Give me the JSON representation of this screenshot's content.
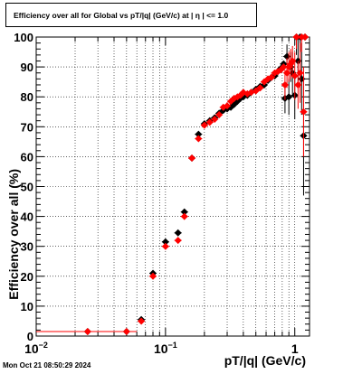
{
  "footer": {
    "timestamp": "Mon Oct 21 08:50:29 2024"
  },
  "chart_data": {
    "type": "scatter",
    "title": "Efficiency over all for Global vs pT/|q| (GeV/c) at |  η  | <= 1.0",
    "xlabel": "pT/|q| (GeV/c)",
    "ylabel": "Efficiency over all (%)",
    "x_scale": "log",
    "xlim": [
      0.01,
      1.3
    ],
    "ylim": [
      0,
      100
    ],
    "grid": true,
    "x_tick_labels": [
      {
        "value": 0.01,
        "label": "10",
        "sup": "−2"
      },
      {
        "value": 0.1,
        "label": "10",
        "sup": "−1"
      },
      {
        "value": 1,
        "label": "1",
        "sup": ""
      }
    ],
    "y_ticks": [
      0,
      10,
      20,
      30,
      40,
      50,
      60,
      70,
      80,
      90,
      100
    ],
    "series": [
      {
        "color": "#000000",
        "points": [
          {
            "x": 0.025,
            "y": 1.5,
            "xerr": [
              0.01,
              0.04
            ]
          },
          {
            "x": 0.05,
            "y": 1.5,
            "xerr": [
              0.04,
              0.06
            ]
          },
          {
            "x": 0.065,
            "y": 5.5
          },
          {
            "x": 0.08,
            "y": 21
          },
          {
            "x": 0.1,
            "y": 31.5
          },
          {
            "x": 0.125,
            "y": 34.5
          },
          {
            "x": 0.14,
            "y": 41.5
          },
          {
            "x": 0.16,
            "y": 59.5
          },
          {
            "x": 0.18,
            "y": 67.5
          },
          {
            "x": 0.2,
            "y": 71
          },
          {
            "x": 0.22,
            "y": 72
          },
          {
            "x": 0.24,
            "y": 73
          },
          {
            "x": 0.26,
            "y": 74.5
          },
          {
            "x": 0.28,
            "y": 75.5
          },
          {
            "x": 0.3,
            "y": 76
          },
          {
            "x": 0.32,
            "y": 76.5
          },
          {
            "x": 0.34,
            "y": 77.5
          },
          {
            "x": 0.36,
            "y": 78.5
          },
          {
            "x": 0.38,
            "y": 79.5
          },
          {
            "x": 0.4,
            "y": 80
          },
          {
            "x": 0.43,
            "y": 80.5
          },
          {
            "x": 0.46,
            "y": 81.5
          },
          {
            "x": 0.5,
            "y": 82.5
          },
          {
            "x": 0.54,
            "y": 83.5
          },
          {
            "x": 0.58,
            "y": 84
          },
          {
            "x": 0.62,
            "y": 85.5
          },
          {
            "x": 0.66,
            "y": 86.5
          },
          {
            "x": 0.7,
            "y": 87
          },
          {
            "x": 0.74,
            "y": 88.5
          },
          {
            "x": 0.78,
            "y": 89.5
          },
          {
            "x": 0.82,
            "y": 91
          },
          {
            "x": 0.84,
            "y": 79.5,
            "yerr": 5
          },
          {
            "x": 0.87,
            "y": 93.5,
            "yerr": 4
          },
          {
            "x": 0.9,
            "y": 80,
            "yerr": 6
          },
          {
            "x": 0.93,
            "y": 90,
            "yerr": 5
          },
          {
            "x": 0.96,
            "y": 88,
            "yerr": 7
          },
          {
            "x": 1.0,
            "y": 80.5,
            "yerr": 8
          },
          {
            "x": 1.03,
            "y": 100,
            "yerr": 6
          },
          {
            "x": 1.06,
            "y": 92,
            "yerr": 8
          },
          {
            "x": 1.1,
            "y": 100,
            "yerr": 5
          },
          {
            "x": 1.13,
            "y": 86,
            "yerr": 12
          },
          {
            "x": 1.17,
            "y": 67,
            "yerr": 20
          },
          {
            "x": 1.2,
            "y": 100
          }
        ]
      },
      {
        "color": "#ff0000",
        "points": [
          {
            "x": 0.025,
            "y": 1.5,
            "xerr": [
              0.01,
              0.04
            ]
          },
          {
            "x": 0.05,
            "y": 1.5,
            "xerr": [
              0.04,
              0.06
            ]
          },
          {
            "x": 0.065,
            "y": 5
          },
          {
            "x": 0.08,
            "y": 20
          },
          {
            "x": 0.1,
            "y": 30
          },
          {
            "x": 0.125,
            "y": 32
          },
          {
            "x": 0.14,
            "y": 40
          },
          {
            "x": 0.16,
            "y": 59.5
          },
          {
            "x": 0.18,
            "y": 66
          },
          {
            "x": 0.2,
            "y": 70.5
          },
          {
            "x": 0.22,
            "y": 71.5
          },
          {
            "x": 0.24,
            "y": 72.5
          },
          {
            "x": 0.26,
            "y": 74
          },
          {
            "x": 0.28,
            "y": 76.5
          },
          {
            "x": 0.3,
            "y": 77
          },
          {
            "x": 0.32,
            "y": 78.5
          },
          {
            "x": 0.34,
            "y": 79.5
          },
          {
            "x": 0.36,
            "y": 80
          },
          {
            "x": 0.38,
            "y": 80.5
          },
          {
            "x": 0.4,
            "y": 81.5
          },
          {
            "x": 0.43,
            "y": 81
          },
          {
            "x": 0.46,
            "y": 81.5
          },
          {
            "x": 0.5,
            "y": 82
          },
          {
            "x": 0.54,
            "y": 83
          },
          {
            "x": 0.58,
            "y": 85
          },
          {
            "x": 0.62,
            "y": 86
          },
          {
            "x": 0.66,
            "y": 86.5
          },
          {
            "x": 0.7,
            "y": 88
          },
          {
            "x": 0.74,
            "y": 88.5
          },
          {
            "x": 0.78,
            "y": 89
          },
          {
            "x": 0.82,
            "y": 90
          },
          {
            "x": 0.84,
            "y": 84,
            "yerr": 5
          },
          {
            "x": 0.87,
            "y": 88,
            "yerr": 5
          },
          {
            "x": 0.9,
            "y": 90,
            "yerr": 5
          },
          {
            "x": 0.93,
            "y": 91,
            "yerr": 5
          },
          {
            "x": 0.96,
            "y": 92,
            "yerr": 5
          },
          {
            "x": 1.0,
            "y": 87,
            "yerr": 8
          },
          {
            "x": 1.03,
            "y": 100,
            "yerr": 4
          },
          {
            "x": 1.06,
            "y": 84,
            "yerr": 8
          },
          {
            "x": 1.1,
            "y": 88,
            "yerr": 10
          },
          {
            "x": 1.13,
            "y": 100,
            "yerr": 5
          },
          {
            "x": 1.17,
            "y": 75,
            "yerr": 15
          },
          {
            "x": 1.2,
            "y": 100
          }
        ]
      }
    ]
  }
}
